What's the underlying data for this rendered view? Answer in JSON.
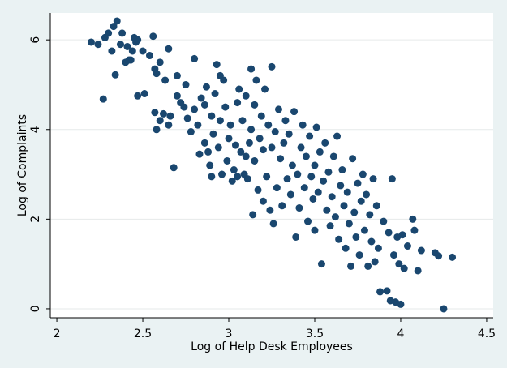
{
  "chart_data": {
    "type": "scatter",
    "xlabel": "Log of Help Desk Employees",
    "ylabel": "Log of Complaints",
    "color": "#1a476f",
    "grid": true,
    "xlim": [
      1.962,
      4.538
    ],
    "ylim": [
      -0.2,
      6.6
    ],
    "xticks": [
      2,
      2.5,
      3,
      3.5,
      4,
      4.5
    ],
    "yticks": [
      0,
      2,
      4,
      6
    ],
    "x": [
      2.2,
      2.24,
      2.27,
      2.28,
      2.3,
      2.32,
      2.33,
      2.35,
      2.34,
      2.37,
      2.38,
      2.4,
      2.41,
      2.42,
      2.43,
      2.44,
      2.45,
      2.46,
      2.47,
      2.47,
      2.5,
      2.51,
      2.54,
      2.56,
      2.57,
      2.58,
      2.6,
      2.57,
      2.58,
      2.6,
      2.62,
      2.63,
      2.65,
      2.65,
      2.66,
      2.68,
      2.7,
      2.7,
      2.72,
      2.74,
      2.75,
      2.76,
      2.78,
      2.8,
      2.8,
      2.82,
      2.83,
      2.84,
      2.86,
      2.86,
      2.87,
      2.88,
      2.89,
      2.9,
      2.9,
      2.91,
      2.92,
      2.93,
      2.94,
      2.95,
      2.95,
      2.96,
      2.97,
      2.98,
      2.99,
      3.0,
      3.01,
      3.02,
      3.03,
      3.04,
      3.05,
      3.05,
      3.06,
      3.07,
      3.08,
      3.09,
      3.1,
      3.1,
      3.11,
      3.12,
      3.13,
      3.13,
      3.14,
      3.15,
      3.15,
      3.16,
      3.17,
      3.18,
      3.19,
      3.2,
      3.2,
      3.21,
      3.22,
      3.23,
      3.24,
      3.25,
      3.25,
      3.26,
      3.27,
      3.28,
      3.29,
      3.3,
      3.31,
      3.32,
      3.33,
      3.34,
      3.35,
      3.36,
      3.37,
      3.38,
      3.39,
      3.4,
      3.41,
      3.42,
      3.43,
      3.44,
      3.45,
      3.46,
      3.47,
      3.48,
      3.49,
      3.5,
      3.5,
      3.51,
      3.52,
      3.53,
      3.54,
      3.55,
      3.56,
      3.57,
      3.58,
      3.59,
      3.6,
      3.61,
      3.62,
      3.63,
      3.64,
      3.65,
      3.66,
      3.67,
      3.68,
      3.69,
      3.7,
      3.71,
      3.72,
      3.73,
      3.74,
      3.75,
      3.76,
      3.77,
      3.78,
      3.79,
      3.8,
      3.81,
      3.82,
      3.83,
      3.84,
      3.85,
      3.86,
      3.87,
      3.88,
      3.9,
      3.92,
      3.93,
      3.94,
      3.95,
      3.96,
      3.97,
      3.98,
      3.99,
      4.0,
      4.01,
      4.02,
      4.04,
      4.07,
      4.08,
      4.1,
      4.12,
      4.2,
      4.22,
      4.25,
      4.3
    ],
    "y": [
      5.95,
      5.9,
      4.68,
      6.05,
      6.15,
      5.75,
      6.3,
      6.42,
      5.22,
      5.9,
      6.15,
      5.5,
      5.85,
      5.55,
      5.55,
      5.75,
      6.05,
      5.95,
      6.0,
      4.75,
      5.75,
      4.8,
      5.65,
      6.08,
      5.35,
      5.25,
      5.5,
      4.38,
      4.0,
      4.2,
      4.35,
      5.1,
      4.1,
      5.8,
      4.3,
      3.15,
      4.75,
      5.2,
      4.6,
      4.5,
      5.0,
      4.25,
      3.95,
      4.45,
      5.58,
      4.1,
      3.45,
      4.7,
      3.7,
      4.55,
      4.95,
      3.5,
      3.2,
      4.3,
      2.95,
      3.9,
      4.8,
      5.45,
      3.6,
      4.2,
      5.2,
      3.0,
      5.1,
      4.5,
      3.3,
      3.8,
      4.1,
      2.85,
      3.1,
      3.65,
      4.6,
      2.95,
      4.9,
      3.5,
      4.2,
      3.0,
      3.4,
      4.75,
      2.9,
      3.7,
      4.0,
      5.35,
      2.1,
      3.3,
      4.55,
      5.1,
      2.65,
      3.8,
      4.3,
      2.4,
      3.55,
      4.9,
      2.95,
      4.1,
      2.2,
      3.6,
      5.4,
      1.9,
      3.95,
      2.7,
      4.45,
      3.35,
      2.3,
      3.7,
      4.2,
      2.9,
      3.9,
      2.55,
      3.2,
      4.4,
      1.6,
      3.0,
      2.25,
      3.6,
      4.1,
      2.7,
      3.4,
      1.95,
      3.85,
      2.95,
      2.45,
      3.2,
      1.75,
      4.05,
      2.6,
      3.5,
      1.0,
      2.85,
      3.7,
      2.2,
      3.05,
      1.85,
      2.5,
      3.4,
      2.05,
      3.85,
      1.55,
      2.75,
      3.1,
      2.3,
      1.35,
      2.6,
      1.9,
      0.95,
      3.35,
      2.15,
      1.6,
      2.8,
      1.2,
      2.4,
      3.0,
      1.75,
      2.55,
      0.95,
      2.1,
      1.5,
      2.9,
      1.05,
      2.3,
      1.35,
      0.38,
      1.95,
      0.4,
      1.7,
      0.18,
      2.9,
      1.2,
      0.15,
      1.6,
      1.0,
      0.1,
      1.65,
      0.9,
      1.4,
      2.0,
      1.75,
      0.85,
      1.3,
      1.25,
      1.18,
      0.0,
      1.15
    ]
  }
}
